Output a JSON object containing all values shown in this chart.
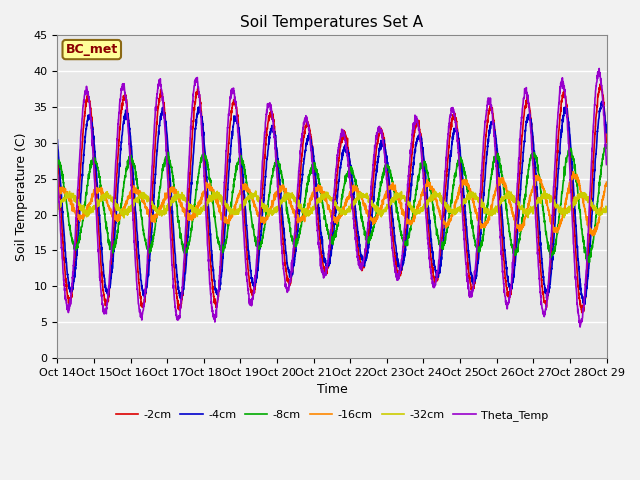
{
  "title": "Soil Temperatures Set A",
  "xlabel": "Time",
  "ylabel": "Soil Temperature (C)",
  "ylim": [
    0,
    45
  ],
  "annotation": "BC_met",
  "legend_labels": [
    "-2cm",
    "-4cm",
    "-8cm",
    "-16cm",
    "-32cm",
    "Theta_Temp"
  ],
  "legend_colors": [
    "#dd0000",
    "#0000cc",
    "#00aa00",
    "#ff8800",
    "#cccc00",
    "#9900cc"
  ],
  "xtick_labels": [
    "Oct 14",
    "Oct 15",
    "Oct 16",
    "Oct 17",
    "Oct 18",
    "Oct 19",
    "Oct 20",
    "Oct 21",
    "Oct 22",
    "Oct 23",
    "Oct 24",
    "Oct 25",
    "Oct 26",
    "Oct 27",
    "Oct 28",
    "Oct 29"
  ],
  "ytick_values": [
    0,
    5,
    10,
    15,
    20,
    25,
    30,
    35,
    40,
    45
  ],
  "title_fontsize": 11,
  "tick_fontsize": 8,
  "label_fontsize": 9
}
